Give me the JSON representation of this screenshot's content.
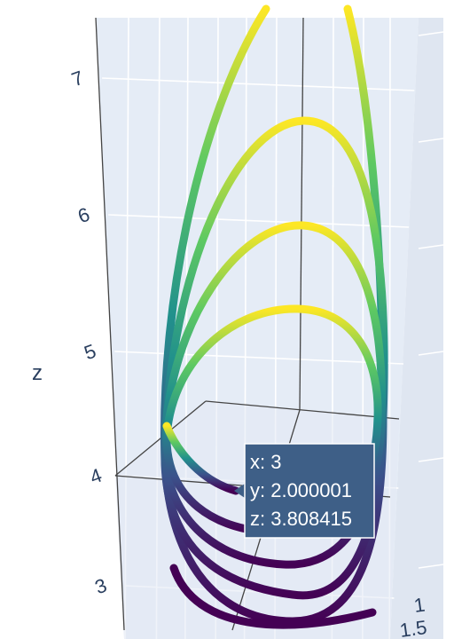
{
  "chart_data": {
    "type": "line",
    "mode": "3d",
    "axes": {
      "x": {
        "visible_tick_labels": [
          "1",
          "1.5"
        ]
      },
      "z": {
        "title": "z",
        "tick_labels": [
          "3",
          "4",
          "5",
          "6",
          "7"
        ]
      }
    },
    "colorscale": "Viridis",
    "hover": {
      "x": "x: 3",
      "y": "y: 2.000001",
      "z": "z: 3.808415"
    },
    "colors": {
      "background": "#e5ecf6",
      "grid": "#ffffff",
      "axis_line": "#444444",
      "tooltip_bg": "#3e5f87",
      "text": "#2a3f5f"
    }
  }
}
